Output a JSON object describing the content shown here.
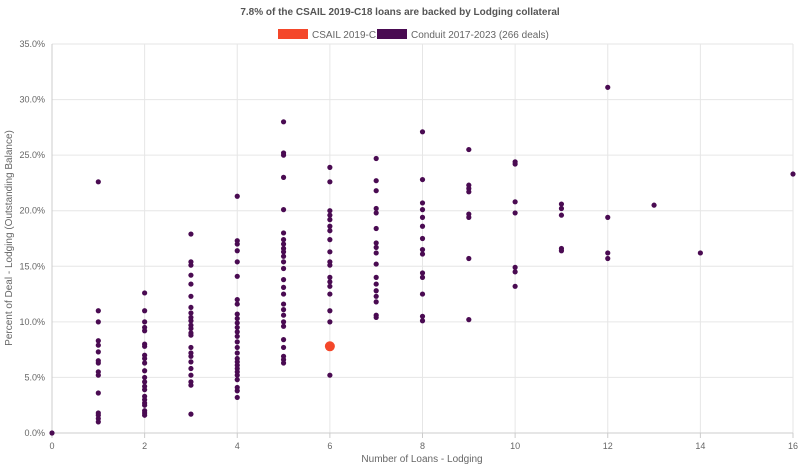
{
  "chart_data": {
    "type": "scatter",
    "title": "7.8% of the CSAIL 2019-C18 loans are backed by Lodging collateral",
    "xlabel": "Number of Loans - Lodging",
    "ylabel": "Percent of Deal - Lodging (Outstanding Balance)",
    "xlim": [
      0,
      16
    ],
    "ylim": [
      0,
      35
    ],
    "x_ticks": [
      "0",
      "2",
      "4",
      "6",
      "8",
      "10",
      "12",
      "14",
      "16"
    ],
    "y_ticks": [
      "0.0%",
      "5.0%",
      "10.0%",
      "15.0%",
      "20.0%",
      "25.0%",
      "30.0%",
      "35.0%"
    ],
    "grid": true,
    "legend_position": "top",
    "series": [
      {
        "name": "CSAIL 2019-C18",
        "color": "#f4472a",
        "points": [
          [
            6,
            7.8
          ]
        ]
      },
      {
        "name": "Conduit 2017-2023 (266 deals)",
        "color": "#4a0b52",
        "points": [
          [
            0,
            0.0
          ],
          [
            1,
            22.6
          ],
          [
            1,
            11.0
          ],
          [
            1,
            10.0
          ],
          [
            1,
            8.3
          ],
          [
            1,
            7.9
          ],
          [
            1,
            7.3
          ],
          [
            1,
            6.5
          ],
          [
            1,
            6.3
          ],
          [
            1,
            5.5
          ],
          [
            1,
            5.2
          ],
          [
            1,
            3.6
          ],
          [
            1,
            1.8
          ],
          [
            1,
            1.6
          ],
          [
            1,
            1.3
          ],
          [
            1,
            1.0
          ],
          [
            2,
            12.6
          ],
          [
            2,
            11.0
          ],
          [
            2,
            10.0
          ],
          [
            2,
            9.5
          ],
          [
            2,
            9.2
          ],
          [
            2,
            8.0
          ],
          [
            2,
            7.8
          ],
          [
            2,
            7.0
          ],
          [
            2,
            6.7
          ],
          [
            2,
            6.3
          ],
          [
            2,
            5.6
          ],
          [
            2,
            5.0
          ],
          [
            2,
            4.6
          ],
          [
            2,
            4.2
          ],
          [
            2,
            3.9
          ],
          [
            2,
            3.3
          ],
          [
            2,
            3.0
          ],
          [
            2,
            2.7
          ],
          [
            2,
            2.5
          ],
          [
            2,
            2.0
          ],
          [
            2,
            1.8
          ],
          [
            2,
            1.6
          ],
          [
            3,
            17.9
          ],
          [
            3,
            15.4
          ],
          [
            3,
            15.1
          ],
          [
            3,
            14.2
          ],
          [
            3,
            13.4
          ],
          [
            3,
            12.3
          ],
          [
            3,
            11.3
          ],
          [
            3,
            10.8
          ],
          [
            3,
            10.4
          ],
          [
            3,
            10.1
          ],
          [
            3,
            9.7
          ],
          [
            3,
            9.4
          ],
          [
            3,
            9.0
          ],
          [
            3,
            8.8
          ],
          [
            3,
            7.7
          ],
          [
            3,
            7.2
          ],
          [
            3,
            6.9
          ],
          [
            3,
            6.4
          ],
          [
            3,
            5.8
          ],
          [
            3,
            5.2
          ],
          [
            3,
            4.6
          ],
          [
            3,
            4.3
          ],
          [
            3,
            1.7
          ],
          [
            4,
            21.3
          ],
          [
            4,
            17.3
          ],
          [
            4,
            17.0
          ],
          [
            4,
            16.4
          ],
          [
            4,
            15.4
          ],
          [
            4,
            14.1
          ],
          [
            4,
            12.0
          ],
          [
            4,
            11.6
          ],
          [
            4,
            10.7
          ],
          [
            4,
            10.3
          ],
          [
            4,
            9.9
          ],
          [
            4,
            9.5
          ],
          [
            4,
            9.1
          ],
          [
            4,
            8.7
          ],
          [
            4,
            8.2
          ],
          [
            4,
            7.7
          ],
          [
            4,
            7.2
          ],
          [
            4,
            6.7
          ],
          [
            4,
            6.4
          ],
          [
            4,
            6.1
          ],
          [
            4,
            5.8
          ],
          [
            4,
            5.5
          ],
          [
            4,
            5.2
          ],
          [
            4,
            4.8
          ],
          [
            4,
            4.1
          ],
          [
            4,
            3.8
          ],
          [
            4,
            3.2
          ],
          [
            5,
            28.0
          ],
          [
            5,
            25.2
          ],
          [
            5,
            25.0
          ],
          [
            5,
            23.0
          ],
          [
            5,
            20.1
          ],
          [
            5,
            18.0
          ],
          [
            5,
            17.4
          ],
          [
            5,
            17.0
          ],
          [
            5,
            16.6
          ],
          [
            5,
            16.3
          ],
          [
            5,
            15.9
          ],
          [
            5,
            15.4
          ],
          [
            5,
            14.8
          ],
          [
            5,
            13.8
          ],
          [
            5,
            13.1
          ],
          [
            5,
            12.5
          ],
          [
            5,
            11.6
          ],
          [
            5,
            11.1
          ],
          [
            5,
            10.6
          ],
          [
            5,
            10.0
          ],
          [
            5,
            9.6
          ],
          [
            5,
            8.4
          ],
          [
            5,
            7.7
          ],
          [
            5,
            6.9
          ],
          [
            5,
            6.6
          ],
          [
            5,
            6.3
          ],
          [
            6,
            23.9
          ],
          [
            6,
            22.6
          ],
          [
            6,
            20.0
          ],
          [
            6,
            19.6
          ],
          [
            6,
            19.2
          ],
          [
            6,
            18.6
          ],
          [
            6,
            18.2
          ],
          [
            6,
            17.4
          ],
          [
            6,
            16.3
          ],
          [
            6,
            15.4
          ],
          [
            6,
            15.1
          ],
          [
            6,
            14.0
          ],
          [
            6,
            13.6
          ],
          [
            6,
            13.2
          ],
          [
            6,
            12.5
          ],
          [
            6,
            11.0
          ],
          [
            6,
            10.0
          ],
          [
            6,
            5.2
          ],
          [
            7,
            24.7
          ],
          [
            7,
            22.7
          ],
          [
            7,
            21.8
          ],
          [
            7,
            20.2
          ],
          [
            7,
            19.8
          ],
          [
            7,
            18.4
          ],
          [
            7,
            17.1
          ],
          [
            7,
            16.7
          ],
          [
            7,
            16.2
          ],
          [
            7,
            15.2
          ],
          [
            7,
            14.0
          ],
          [
            7,
            13.4
          ],
          [
            7,
            12.8
          ],
          [
            7,
            12.3
          ],
          [
            7,
            11.8
          ],
          [
            7,
            10.6
          ],
          [
            7,
            10.4
          ],
          [
            8,
            27.1
          ],
          [
            8,
            22.8
          ],
          [
            8,
            20.7
          ],
          [
            8,
            20.1
          ],
          [
            8,
            19.4
          ],
          [
            8,
            18.6
          ],
          [
            8,
            17.5
          ],
          [
            8,
            16.5
          ],
          [
            8,
            16.1
          ],
          [
            8,
            14.4
          ],
          [
            8,
            14.0
          ],
          [
            8,
            12.5
          ],
          [
            8,
            10.5
          ],
          [
            8,
            10.1
          ],
          [
            9,
            25.5
          ],
          [
            9,
            22.3
          ],
          [
            9,
            22.0
          ],
          [
            9,
            21.7
          ],
          [
            9,
            19.7
          ],
          [
            9,
            19.4
          ],
          [
            9,
            15.7
          ],
          [
            9,
            10.2
          ],
          [
            10,
            24.4
          ],
          [
            10,
            24.2
          ],
          [
            10,
            20.8
          ],
          [
            10,
            19.8
          ],
          [
            10,
            14.9
          ],
          [
            10,
            14.5
          ],
          [
            10,
            13.2
          ],
          [
            11,
            20.6
          ],
          [
            11,
            20.2
          ],
          [
            11,
            19.6
          ],
          [
            11,
            16.6
          ],
          [
            11,
            16.4
          ],
          [
            12,
            31.1
          ],
          [
            12,
            19.4
          ],
          [
            12,
            16.2
          ],
          [
            12,
            15.7
          ],
          [
            13,
            20.5
          ],
          [
            14,
            16.2
          ],
          [
            16,
            23.3
          ]
        ]
      }
    ]
  }
}
